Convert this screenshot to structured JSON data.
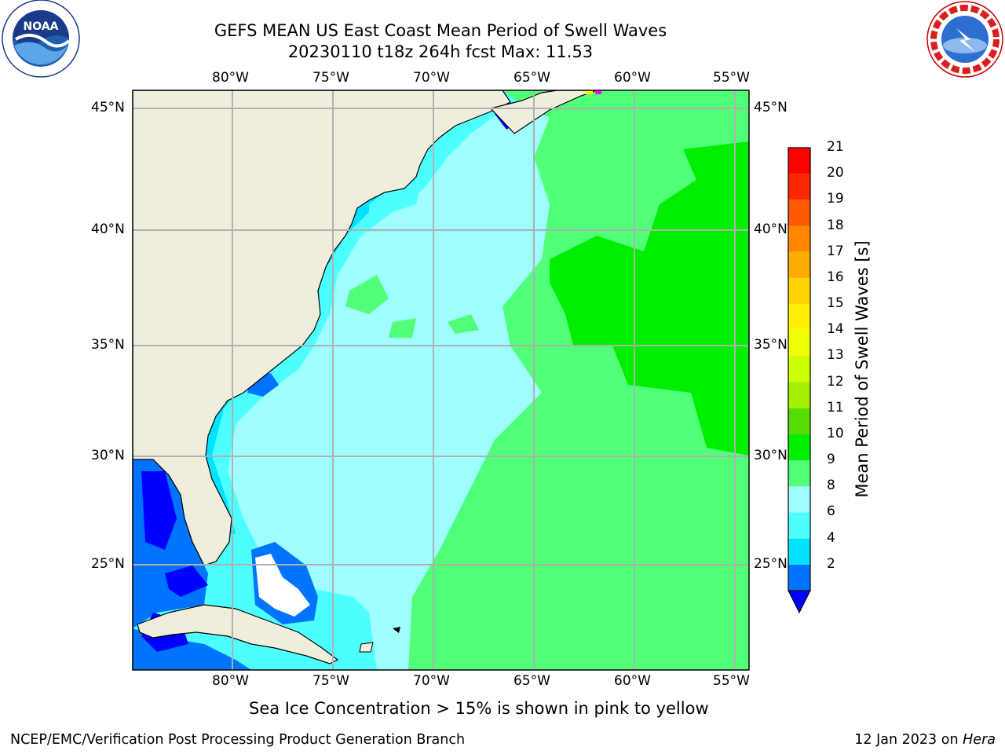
{
  "title": {
    "line1": "GEFS MEAN US East Coast Mean Period of Swell Waves",
    "line2": "20230110 t18z 264h fcst   Max: 11.53"
  },
  "logos": {
    "left": "noaa-logo",
    "left_text": "NOAA",
    "right": "nws-logo"
  },
  "map": {
    "lon_labels": [
      "80°W",
      "75°W",
      "70°W",
      "65°W",
      "60°W",
      "55°W"
    ],
    "lat_labels": [
      "45°N",
      "40°N",
      "35°N",
      "30°N",
      "25°N"
    ],
    "lon_values": [
      -80,
      -75,
      -70,
      -65,
      -60,
      -55
    ],
    "lat_values": [
      45,
      40,
      35,
      30,
      25
    ],
    "lon_range": [
      -85,
      -54.4
    ],
    "lat_range": [
      20.3,
      46
    ],
    "grid": true,
    "land_color": "#efeedc",
    "gridline_color": "#b0b0b0"
  },
  "colorbar": {
    "title": "Mean Period of Swell Waves [s]",
    "ticks": [
      "21",
      "20",
      "19",
      "18",
      "17",
      "16",
      "15",
      "14",
      "13",
      "12",
      "11",
      "10",
      "9",
      "8",
      "6",
      "4",
      "2"
    ],
    "levels": [
      2,
      4,
      6,
      8,
      9,
      10,
      11,
      12,
      13,
      14,
      15,
      16,
      17,
      18,
      19,
      20,
      21
    ],
    "colors": [
      "#0074ff",
      "#00e2ff",
      "#4dffff",
      "#9fffff",
      "#52ff79",
      "#00ef00",
      "#55dd00",
      "#a2f000",
      "#c9ff00",
      "#eeff00",
      "#fff200",
      "#ffd400",
      "#ffac00",
      "#ff8700",
      "#ff5a00",
      "#ff2700",
      "#ff0000"
    ],
    "under_color": "#0000ff",
    "extend": "min"
  },
  "note": "Sea Ice Concentration > 15% is shown in pink to yellow",
  "footer": {
    "left": "NCEP/EMC/Verification Post Processing Product Generation Branch",
    "date": "12 Jan 2023 on",
    "machine": "Hera"
  }
}
